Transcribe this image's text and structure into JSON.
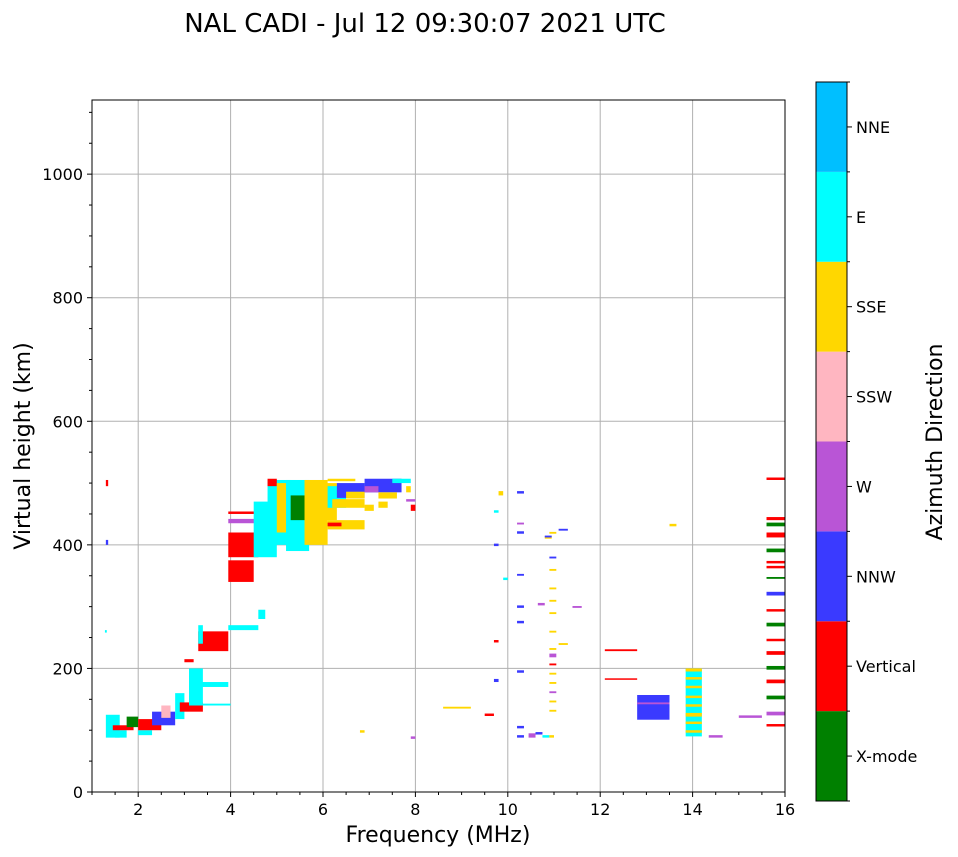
{
  "chart_data": {
    "type": "scatter",
    "title": "NAL CADI - Jul 12 09:30:07 2021 UTC",
    "xlabel": "Frequency (MHz)",
    "ylabel": "Virtual height (km)",
    "xlim": [
      1,
      16
    ],
    "ylim": [
      0,
      1120
    ],
    "xticks": [
      2,
      4,
      6,
      8,
      10,
      12,
      14,
      16
    ],
    "yticks": [
      0,
      200,
      400,
      600,
      800,
      1000
    ],
    "grid": true,
    "colorbar": {
      "label": "Azimuth Direction",
      "categories": [
        {
          "name": "X-mode",
          "color": "#008000"
        },
        {
          "name": "Vertical",
          "color": "#ff0000"
        },
        {
          "name": "NNW",
          "color": "#3a3aff"
        },
        {
          "name": "W",
          "color": "#b955d6"
        },
        {
          "name": "SSW",
          "color": "#ffb6c1"
        },
        {
          "name": "SSE",
          "color": "#ffd700"
        },
        {
          "name": "E",
          "color": "#00ffff"
        },
        {
          "name": "NNE",
          "color": "#00bfff"
        }
      ]
    },
    "segments": [
      {
        "f0": 1.3,
        "f1": 1.35,
        "h0": 495,
        "h1": 505,
        "c": "Vertical"
      },
      {
        "f0": 1.3,
        "f1": 1.35,
        "h0": 400,
        "h1": 408,
        "c": "NNW"
      },
      {
        "f0": 1.28,
        "f1": 1.32,
        "h0": 258,
        "h1": 262,
        "c": "E"
      },
      {
        "f0": 1.3,
        "f1": 1.6,
        "h0": 88,
        "h1": 125,
        "c": "E"
      },
      {
        "f0": 1.5,
        "f1": 1.75,
        "h0": 88,
        "h1": 100,
        "c": "E"
      },
      {
        "f0": 1.45,
        "f1": 1.9,
        "h0": 100,
        "h1": 108,
        "c": "Vertical"
      },
      {
        "f0": 1.75,
        "f1": 2.0,
        "h0": 105,
        "h1": 122,
        "c": "X-mode"
      },
      {
        "f0": 2.0,
        "f1": 2.3,
        "h0": 92,
        "h1": 100,
        "c": "E"
      },
      {
        "f0": 2.0,
        "f1": 2.5,
        "h0": 100,
        "h1": 118,
        "c": "Vertical"
      },
      {
        "f0": 2.3,
        "f1": 2.8,
        "h0": 108,
        "h1": 130,
        "c": "NNW"
      },
      {
        "f0": 2.5,
        "f1": 2.7,
        "h0": 120,
        "h1": 140,
        "c": "SSW"
      },
      {
        "f0": 2.8,
        "f1": 3.0,
        "h0": 118,
        "h1": 160,
        "c": "E"
      },
      {
        "f0": 2.9,
        "f1": 3.4,
        "h0": 130,
        "h1": 145,
        "c": "Vertical"
      },
      {
        "f0": 3.1,
        "f1": 3.4,
        "h0": 140,
        "h1": 200,
        "c": "E"
      },
      {
        "f0": 3.4,
        "f1": 4.0,
        "h0": 140,
        "h1": 143,
        "c": "E"
      },
      {
        "f0": 3.3,
        "f1": 3.95,
        "h0": 170,
        "h1": 178,
        "c": "E"
      },
      {
        "f0": 3.0,
        "f1": 3.2,
        "h0": 210,
        "h1": 215,
        "c": "Vertical"
      },
      {
        "f0": 3.3,
        "f1": 3.95,
        "h0": 228,
        "h1": 260,
        "c": "Vertical"
      },
      {
        "f0": 3.3,
        "f1": 3.4,
        "h0": 240,
        "h1": 270,
        "c": "E"
      },
      {
        "f0": 3.95,
        "f1": 4.6,
        "h0": 262,
        "h1": 270,
        "c": "E"
      },
      {
        "f0": 4.6,
        "f1": 4.75,
        "h0": 280,
        "h1": 295,
        "c": "E"
      },
      {
        "f0": 3.95,
        "f1": 4.5,
        "h0": 340,
        "h1": 375,
        "c": "Vertical"
      },
      {
        "f0": 3.95,
        "f1": 4.6,
        "h0": 380,
        "h1": 420,
        "c": "Vertical"
      },
      {
        "f0": 3.95,
        "f1": 4.6,
        "h0": 435,
        "h1": 442,
        "c": "W"
      },
      {
        "f0": 3.95,
        "f1": 4.7,
        "h0": 450,
        "h1": 454,
        "c": "Vertical"
      },
      {
        "f0": 4.5,
        "f1": 5.0,
        "h0": 380,
        "h1": 470,
        "c": "E"
      },
      {
        "f0": 4.8,
        "f1": 5.3,
        "h0": 400,
        "h1": 505,
        "c": "E"
      },
      {
        "f0": 4.8,
        "f1": 5.0,
        "h0": 495,
        "h1": 507,
        "c": "Vertical"
      },
      {
        "f0": 5.0,
        "f1": 5.4,
        "h0": 420,
        "h1": 500,
        "c": "SSE"
      },
      {
        "f0": 5.2,
        "f1": 5.7,
        "h0": 390,
        "h1": 505,
        "c": "E"
      },
      {
        "f0": 5.3,
        "f1": 5.8,
        "h0": 440,
        "h1": 480,
        "c": "X-mode"
      },
      {
        "f0": 5.6,
        "f1": 6.1,
        "h0": 400,
        "h1": 505,
        "c": "SSE"
      },
      {
        "f0": 5.9,
        "f1": 6.3,
        "h0": 440,
        "h1": 500,
        "c": "SSE"
      },
      {
        "f0": 6.1,
        "f1": 6.5,
        "h0": 460,
        "h1": 495,
        "c": "E"
      },
      {
        "f0": 6.1,
        "f1": 6.9,
        "h0": 425,
        "h1": 440,
        "c": "SSE"
      },
      {
        "f0": 6.1,
        "f1": 6.4,
        "h0": 430,
        "h1": 436,
        "c": "Vertical"
      },
      {
        "f0": 6.2,
        "f1": 6.9,
        "h0": 460,
        "h1": 474,
        "c": "SSE"
      },
      {
        "f0": 6.3,
        "f1": 6.9,
        "h0": 476,
        "h1": 500,
        "c": "NNW"
      },
      {
        "f0": 6.5,
        "f1": 6.9,
        "h0": 475,
        "h1": 486,
        "c": "SSE"
      },
      {
        "f0": 6.1,
        "f1": 6.7,
        "h0": 503,
        "h1": 507,
        "c": "SSE"
      },
      {
        "f0": 6.9,
        "f1": 7.7,
        "h0": 485,
        "h1": 507,
        "c": "NNW"
      },
      {
        "f0": 6.9,
        "f1": 7.2,
        "h0": 485,
        "h1": 495,
        "c": "W"
      },
      {
        "f0": 7.2,
        "f1": 7.6,
        "h0": 475,
        "h1": 485,
        "c": "SSE"
      },
      {
        "f0": 7.2,
        "f1": 7.4,
        "h0": 460,
        "h1": 470,
        "c": "SSE"
      },
      {
        "f0": 6.9,
        "f1": 7.1,
        "h0": 455,
        "h1": 465,
        "c": "SSE"
      },
      {
        "f0": 7.5,
        "f1": 7.9,
        "h0": 500,
        "h1": 507,
        "c": "E"
      },
      {
        "f0": 7.8,
        "f1": 7.9,
        "h0": 485,
        "h1": 495,
        "c": "SSE"
      },
      {
        "f0": 7.9,
        "f1": 8.0,
        "h0": 455,
        "h1": 465,
        "c": "Vertical"
      },
      {
        "f0": 7.8,
        "f1": 8.0,
        "h0": 470,
        "h1": 474,
        "c": "W"
      },
      {
        "f0": 6.8,
        "f1": 6.9,
        "h0": 96,
        "h1": 100,
        "c": "SSE"
      },
      {
        "f0": 7.9,
        "f1": 8.0,
        "h0": 86,
        "h1": 90,
        "c": "W"
      },
      {
        "f0": 8.6,
        "f1": 9.2,
        "h0": 135,
        "h1": 138,
        "c": "SSE"
      },
      {
        "f0": 9.5,
        "f1": 9.7,
        "h0": 123,
        "h1": 127,
        "c": "Vertical"
      },
      {
        "f0": 9.7,
        "f1": 9.8,
        "h0": 178,
        "h1": 183,
        "c": "NNW"
      },
      {
        "f0": 9.7,
        "f1": 9.8,
        "h0": 242,
        "h1": 246,
        "c": "Vertical"
      },
      {
        "f0": 9.7,
        "f1": 9.8,
        "h0": 398,
        "h1": 402,
        "c": "NNW"
      },
      {
        "f0": 9.7,
        "f1": 9.8,
        "h0": 452,
        "h1": 456,
        "c": "E"
      },
      {
        "f0": 9.8,
        "f1": 9.9,
        "h0": 480,
        "h1": 487,
        "c": "SSE"
      },
      {
        "f0": 9.9,
        "f1": 10.0,
        "h0": 343,
        "h1": 347,
        "c": "E"
      },
      {
        "f0": 10.2,
        "f1": 10.35,
        "h0": 88,
        "h1": 92,
        "c": "NNW"
      },
      {
        "f0": 10.2,
        "f1": 10.35,
        "h0": 103,
        "h1": 107,
        "c": "NNW"
      },
      {
        "f0": 10.2,
        "f1": 10.35,
        "h0": 193,
        "h1": 197,
        "c": "NNW"
      },
      {
        "f0": 10.2,
        "f1": 10.35,
        "h0": 273,
        "h1": 277,
        "c": "NNW"
      },
      {
        "f0": 10.2,
        "f1": 10.35,
        "h0": 298,
        "h1": 302,
        "c": "NNW"
      },
      {
        "f0": 10.2,
        "f1": 10.35,
        "h0": 350,
        "h1": 353,
        "c": "NNW"
      },
      {
        "f0": 10.2,
        "f1": 10.35,
        "h0": 418,
        "h1": 422,
        "c": "NNW"
      },
      {
        "f0": 10.2,
        "f1": 10.35,
        "h0": 433,
        "h1": 436,
        "c": "W"
      },
      {
        "f0": 10.2,
        "f1": 10.35,
        "h0": 483,
        "h1": 487,
        "c": "NNW"
      },
      {
        "f0": 10.45,
        "f1": 10.6,
        "h0": 88,
        "h1": 95,
        "c": "W"
      },
      {
        "f0": 10.6,
        "f1": 10.75,
        "h0": 93,
        "h1": 97,
        "c": "NNW"
      },
      {
        "f0": 10.65,
        "f1": 10.8,
        "h0": 302,
        "h1": 306,
        "c": "W"
      },
      {
        "f0": 10.75,
        "f1": 10.9,
        "h0": 88,
        "h1": 92,
        "c": "E"
      },
      {
        "f0": 10.8,
        "f1": 10.95,
        "h0": 410,
        "h1": 414,
        "c": "SSE"
      },
      {
        "f0": 10.8,
        "f1": 10.95,
        "h0": 412,
        "h1": 415,
        "c": "NNW"
      },
      {
        "f0": 10.9,
        "f1": 11.0,
        "h0": 88,
        "h1": 92,
        "c": "SSE"
      },
      {
        "f0": 10.9,
        "f1": 11.05,
        "h0": 130,
        "h1": 133,
        "c": "SSE"
      },
      {
        "f0": 10.9,
        "f1": 11.05,
        "h0": 145,
        "h1": 148,
        "c": "SSE"
      },
      {
        "f0": 10.9,
        "f1": 11.05,
        "h0": 160,
        "h1": 163,
        "c": "W"
      },
      {
        "f0": 10.9,
        "f1": 11.05,
        "h0": 175,
        "h1": 178,
        "c": "SSE"
      },
      {
        "f0": 10.9,
        "f1": 11.05,
        "h0": 190,
        "h1": 193,
        "c": "SSE"
      },
      {
        "f0": 10.9,
        "f1": 11.05,
        "h0": 205,
        "h1": 208,
        "c": "Vertical"
      },
      {
        "f0": 10.9,
        "f1": 11.05,
        "h0": 218,
        "h1": 224,
        "c": "W"
      },
      {
        "f0": 10.9,
        "f1": 11.05,
        "h0": 230,
        "h1": 233,
        "c": "SSE"
      },
      {
        "f0": 10.9,
        "f1": 11.05,
        "h0": 258,
        "h1": 261,
        "c": "SSE"
      },
      {
        "f0": 10.9,
        "f1": 11.05,
        "h0": 288,
        "h1": 291,
        "c": "SSE"
      },
      {
        "f0": 10.9,
        "f1": 11.05,
        "h0": 308,
        "h1": 311,
        "c": "SSE"
      },
      {
        "f0": 10.9,
        "f1": 11.05,
        "h0": 328,
        "h1": 331,
        "c": "SSE"
      },
      {
        "f0": 10.9,
        "f1": 11.05,
        "h0": 358,
        "h1": 361,
        "c": "SSE"
      },
      {
        "f0": 10.9,
        "f1": 11.05,
        "h0": 378,
        "h1": 381,
        "c": "NNW"
      },
      {
        "f0": 10.9,
        "f1": 11.05,
        "h0": 418,
        "h1": 421,
        "c": "SSE"
      },
      {
        "f0": 11.1,
        "f1": 11.3,
        "h0": 238,
        "h1": 241,
        "c": "SSE"
      },
      {
        "f0": 11.1,
        "f1": 11.3,
        "h0": 423,
        "h1": 426,
        "c": "NNW"
      },
      {
        "f0": 11.4,
        "f1": 11.6,
        "h0": 298,
        "h1": 301,
        "c": "W"
      },
      {
        "f0": 12.1,
        "f1": 12.8,
        "h0": 228,
        "h1": 231,
        "c": "Vertical"
      },
      {
        "f0": 12.1,
        "f1": 12.8,
        "h0": 182,
        "h1": 184,
        "c": "Vertical"
      },
      {
        "f0": 12.8,
        "f1": 13.5,
        "h0": 117,
        "h1": 157,
        "c": "NNW"
      },
      {
        "f0": 12.8,
        "f1": 13.5,
        "h0": 142,
        "h1": 145,
        "c": "W"
      },
      {
        "f0": 13.5,
        "f1": 13.65,
        "h0": 430,
        "h1": 434,
        "c": "SSE"
      },
      {
        "f0": 13.85,
        "f1": 14.2,
        "h0": 90,
        "h1": 200,
        "c": "E"
      },
      {
        "f0": 13.85,
        "f1": 14.2,
        "h0": 96,
        "h1": 100,
        "c": "SSE"
      },
      {
        "f0": 13.85,
        "f1": 14.2,
        "h0": 110,
        "h1": 114,
        "c": "SSE"
      },
      {
        "f0": 13.85,
        "f1": 14.2,
        "h0": 122,
        "h1": 128,
        "c": "SSE"
      },
      {
        "f0": 13.85,
        "f1": 14.2,
        "h0": 138,
        "h1": 142,
        "c": "SSE"
      },
      {
        "f0": 13.85,
        "f1": 14.2,
        "h0": 152,
        "h1": 156,
        "c": "SSE"
      },
      {
        "f0": 13.85,
        "f1": 14.2,
        "h0": 168,
        "h1": 172,
        "c": "SSE"
      },
      {
        "f0": 13.85,
        "f1": 14.2,
        "h0": 182,
        "h1": 186,
        "c": "SSE"
      },
      {
        "f0": 13.85,
        "f1": 14.2,
        "h0": 195,
        "h1": 200,
        "c": "SSE"
      },
      {
        "f0": 14.35,
        "f1": 14.65,
        "h0": 88,
        "h1": 92,
        "c": "W"
      },
      {
        "f0": 15.0,
        "f1": 15.5,
        "h0": 120,
        "h1": 124,
        "c": "W"
      },
      {
        "f0": 15.6,
        "f1": 16.0,
        "h0": 106,
        "h1": 110,
        "c": "Vertical"
      },
      {
        "f0": 15.6,
        "f1": 16.0,
        "h0": 124,
        "h1": 130,
        "c": "W"
      },
      {
        "f0": 15.6,
        "f1": 16.0,
        "h0": 150,
        "h1": 156,
        "c": "X-mode"
      },
      {
        "f0": 15.6,
        "f1": 16.0,
        "h0": 176,
        "h1": 182,
        "c": "Vertical"
      },
      {
        "f0": 15.6,
        "f1": 16.0,
        "h0": 198,
        "h1": 204,
        "c": "X-mode"
      },
      {
        "f0": 15.6,
        "f1": 16.0,
        "h0": 222,
        "h1": 228,
        "c": "Vertical"
      },
      {
        "f0": 15.6,
        "f1": 16.0,
        "h0": 244,
        "h1": 248,
        "c": "Vertical"
      },
      {
        "f0": 15.6,
        "f1": 16.0,
        "h0": 268,
        "h1": 274,
        "c": "X-mode"
      },
      {
        "f0": 15.6,
        "f1": 16.0,
        "h0": 292,
        "h1": 296,
        "c": "Vertical"
      },
      {
        "f0": 15.6,
        "f1": 16.0,
        "h0": 318,
        "h1": 324,
        "c": "NNW"
      },
      {
        "f0": 15.6,
        "f1": 16.0,
        "h0": 345,
        "h1": 348,
        "c": "X-mode"
      },
      {
        "f0": 15.6,
        "f1": 16.0,
        "h0": 362,
        "h1": 366,
        "c": "Vertical"
      },
      {
        "f0": 15.6,
        "f1": 16.0,
        "h0": 370,
        "h1": 374,
        "c": "Vertical"
      },
      {
        "f0": 15.6,
        "f1": 16.0,
        "h0": 388,
        "h1": 394,
        "c": "X-mode"
      },
      {
        "f0": 15.6,
        "f1": 16.0,
        "h0": 412,
        "h1": 420,
        "c": "Vertical"
      },
      {
        "f0": 15.6,
        "f1": 16.0,
        "h0": 430,
        "h1": 436,
        "c": "X-mode"
      },
      {
        "f0": 15.6,
        "f1": 16.0,
        "h0": 440,
        "h1": 445,
        "c": "Vertical"
      },
      {
        "f0": 15.6,
        "f1": 16.0,
        "h0": 505,
        "h1": 509,
        "c": "Vertical"
      }
    ]
  }
}
